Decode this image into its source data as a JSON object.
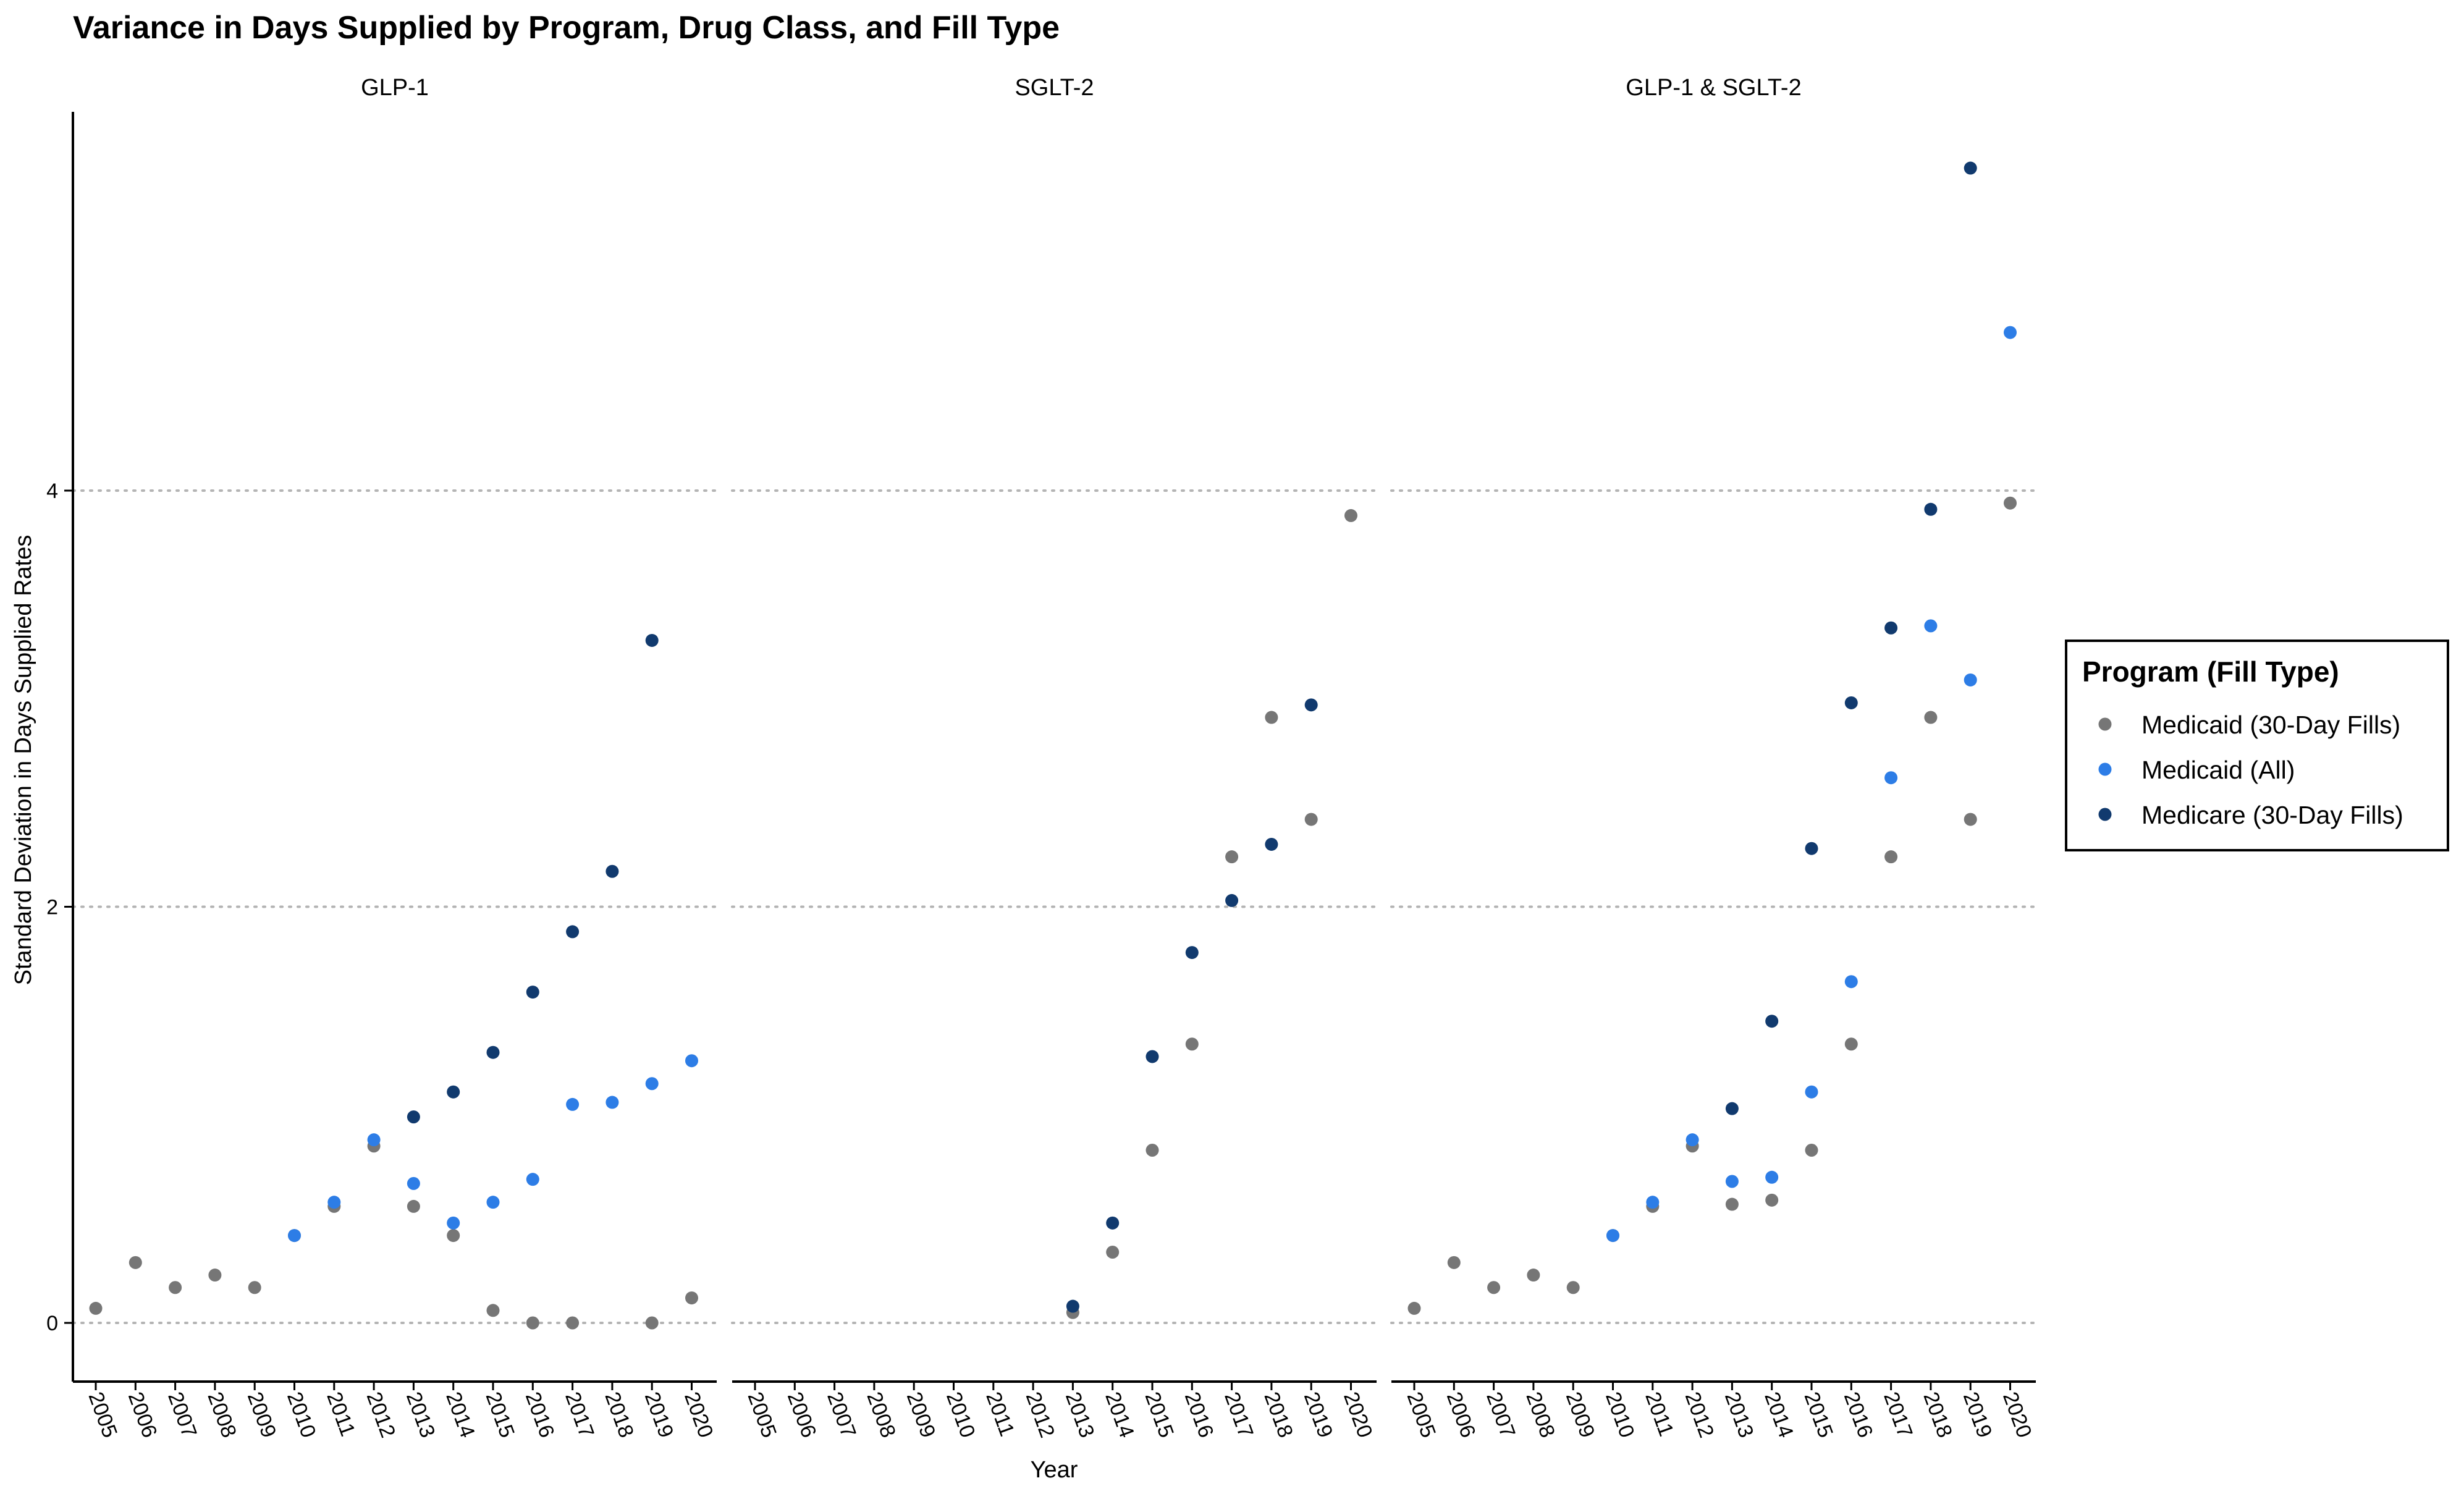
{
  "title": "Variance in Days Supplied by Program, Drug Class, and Fill Type",
  "colors": {
    "Medicaid (30-Day Fills)": "#767676",
    "Medicaid (All)": "#2d7de6",
    "Medicare (30-Day Fills)": "#113a6e",
    "grid": "#b4b4b4",
    "axis": "#000000"
  },
  "legend": {
    "title": "Program (Fill Type)",
    "position": "right",
    "items": [
      "Medicaid (30-Day Fills)",
      "Medicaid (All)",
      "Medicare (30-Day Fills)"
    ]
  },
  "chart_data": {
    "type": "scatter",
    "title": "Variance in Days Supplied by Program, Drug Class, and Fill Type",
    "xlabel": "Year",
    "ylabel": "Standard Deviation in Days Supplied Rates",
    "x": [
      2005,
      2006,
      2007,
      2008,
      2009,
      2010,
      2011,
      2012,
      2013,
      2014,
      2015,
      2016,
      2017,
      2018,
      2019,
      2020
    ],
    "y_ticks": [
      0,
      2,
      4
    ],
    "ylim": [
      -0.28,
      5.82
    ],
    "grid": "horizontal dotted",
    "legend_position": "right",
    "facets": [
      {
        "label": "GLP-1",
        "series": [
          {
            "name": "Medicaid (30-Day Fills)",
            "points": [
              [
                2005,
                0.07
              ],
              [
                2006,
                0.29
              ],
              [
                2007,
                0.17
              ],
              [
                2008,
                0.23
              ],
              [
                2009,
                0.17
              ],
              [
                2010,
                0.42
              ],
              [
                2011,
                0.56
              ],
              [
                2012,
                0.85
              ],
              [
                2013,
                0.56
              ],
              [
                2014,
                0.42
              ],
              [
                2015,
                0.06
              ],
              [
                2016,
                0.0
              ],
              [
                2017,
                0.0
              ],
              [
                2019,
                0.0
              ],
              [
                2020,
                0.12
              ]
            ]
          },
          {
            "name": "Medicaid (All)",
            "points": [
              [
                2010,
                0.42
              ],
              [
                2011,
                0.58
              ],
              [
                2012,
                0.88
              ],
              [
                2013,
                0.67
              ],
              [
                2014,
                0.48
              ],
              [
                2015,
                0.58
              ],
              [
                2016,
                0.69
              ],
              [
                2017,
                1.05
              ],
              [
                2018,
                1.06
              ],
              [
                2019,
                1.15
              ],
              [
                2020,
                1.26
              ]
            ]
          },
          {
            "name": "Medicare (30-Day Fills)",
            "points": [
              [
                2013,
                0.99
              ],
              [
                2014,
                1.11
              ],
              [
                2015,
                1.3
              ],
              [
                2016,
                1.59
              ],
              [
                2017,
                1.88
              ],
              [
                2018,
                2.17
              ],
              [
                2019,
                3.28
              ]
            ]
          }
        ]
      },
      {
        "label": "SGLT-2",
        "series": [
          {
            "name": "Medicaid (30-Day Fills)",
            "points": [
              [
                2013,
                0.05
              ],
              [
                2014,
                0.34
              ],
              [
                2015,
                0.83
              ],
              [
                2016,
                1.34
              ],
              [
                2017,
                2.24
              ],
              [
                2018,
                2.91
              ],
              [
                2019,
                2.42
              ],
              [
                2020,
                3.88
              ]
            ]
          },
          {
            "name": "Medicaid (All)",
            "points": []
          },
          {
            "name": "Medicare (30-Day Fills)",
            "points": [
              [
                2013,
                0.08
              ],
              [
                2014,
                0.48
              ],
              [
                2015,
                1.28
              ],
              [
                2016,
                1.78
              ],
              [
                2017,
                2.03
              ],
              [
                2018,
                2.3
              ],
              [
                2019,
                2.97
              ]
            ]
          }
        ]
      },
      {
        "label": "GLP-1 & SGLT-2",
        "series": [
          {
            "name": "Medicaid (30-Day Fills)",
            "points": [
              [
                2005,
                0.07
              ],
              [
                2006,
                0.29
              ],
              [
                2007,
                0.17
              ],
              [
                2008,
                0.23
              ],
              [
                2009,
                0.17
              ],
              [
                2010,
                0.42
              ],
              [
                2011,
                0.56
              ],
              [
                2012,
                0.85
              ],
              [
                2013,
                0.57
              ],
              [
                2014,
                0.59
              ],
              [
                2015,
                0.83
              ],
              [
                2016,
                1.34
              ],
              [
                2017,
                2.24
              ],
              [
                2018,
                2.91
              ],
              [
                2019,
                2.42
              ],
              [
                2020,
                3.94
              ]
            ]
          },
          {
            "name": "Medicaid (All)",
            "points": [
              [
                2010,
                0.42
              ],
              [
                2011,
                0.58
              ],
              [
                2012,
                0.88
              ],
              [
                2013,
                0.68
              ],
              [
                2014,
                0.7
              ],
              [
                2015,
                1.11
              ],
              [
                2016,
                1.64
              ],
              [
                2017,
                2.62
              ],
              [
                2018,
                3.35
              ],
              [
                2019,
                3.09
              ],
              [
                2020,
                4.76
              ]
            ]
          },
          {
            "name": "Medicare (30-Day Fills)",
            "points": [
              [
                2013,
                1.03
              ],
              [
                2014,
                1.45
              ],
              [
                2015,
                2.28
              ],
              [
                2016,
                2.98
              ],
              [
                2017,
                3.34
              ],
              [
                2018,
                3.91
              ],
              [
                2019,
                5.55
              ]
            ]
          }
        ]
      }
    ]
  }
}
